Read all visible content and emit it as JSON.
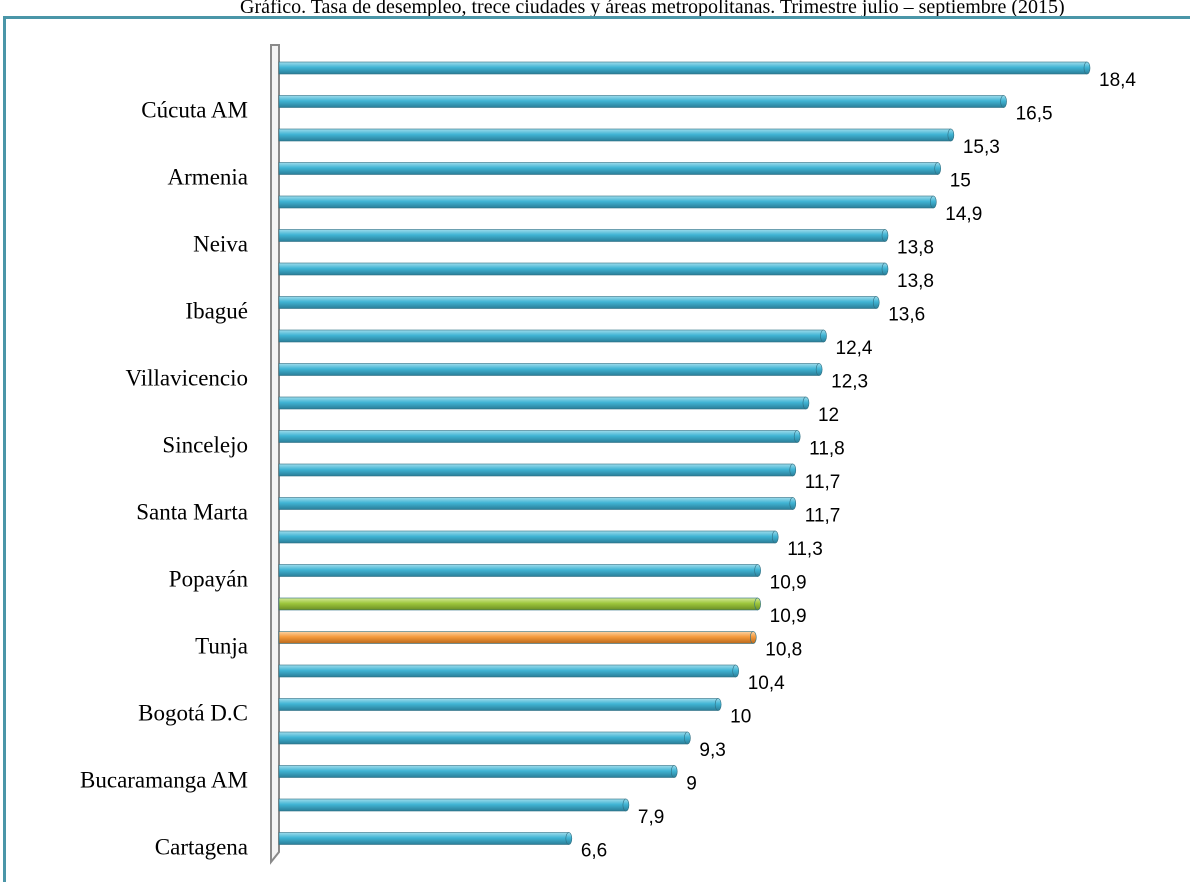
{
  "header": {
    "caption": "Gráfico. Tasa de desempleo, trece ciudades y áreas metropolitanas. Trimestre julio – septiembre (2015)"
  },
  "colors": {
    "bar_default": "#40b4d4",
    "bar_highlight_green": "#9dc63c",
    "bar_highlight_orange": "#f59a3c",
    "frame": "#4a96a8"
  },
  "chart_data": {
    "type": "bar",
    "orientation": "horizontal",
    "categories": [
      "",
      "Cúcuta AM",
      "",
      "Armenia",
      "",
      "Neiva",
      "",
      "Ibagué",
      "",
      "Villavicencio",
      "",
      "Sincelejo",
      "",
      "Santa Marta",
      "",
      "Popayán",
      "",
      "Tunja",
      "",
      "Bogotá D.C",
      "",
      "Bucaramanga AM",
      "",
      "Cartagena"
    ],
    "values": [
      18.4,
      16.5,
      15.3,
      15,
      14.9,
      13.8,
      13.8,
      13.6,
      12.4,
      12.3,
      12,
      11.8,
      11.7,
      11.7,
      11.3,
      10.9,
      10.9,
      10.8,
      10.4,
      10,
      9.3,
      9,
      7.9,
      6.6
    ],
    "value_labels": [
      "18,4",
      "16,5",
      "15,3",
      "15",
      "14,9",
      "13,8",
      "13,8",
      "13,6",
      "12,4",
      "12,3",
      "12",
      "11,8",
      "11,7",
      "11,7",
      "11,3",
      "10,9",
      "10,9",
      "10,8",
      "10,4",
      "10",
      "9,3",
      "9",
      "7,9",
      "6,6"
    ],
    "highlights": {
      "16": "green",
      "17": "orange"
    },
    "xlim": [
      0,
      18.4
    ],
    "grid": false,
    "legend": "none"
  }
}
